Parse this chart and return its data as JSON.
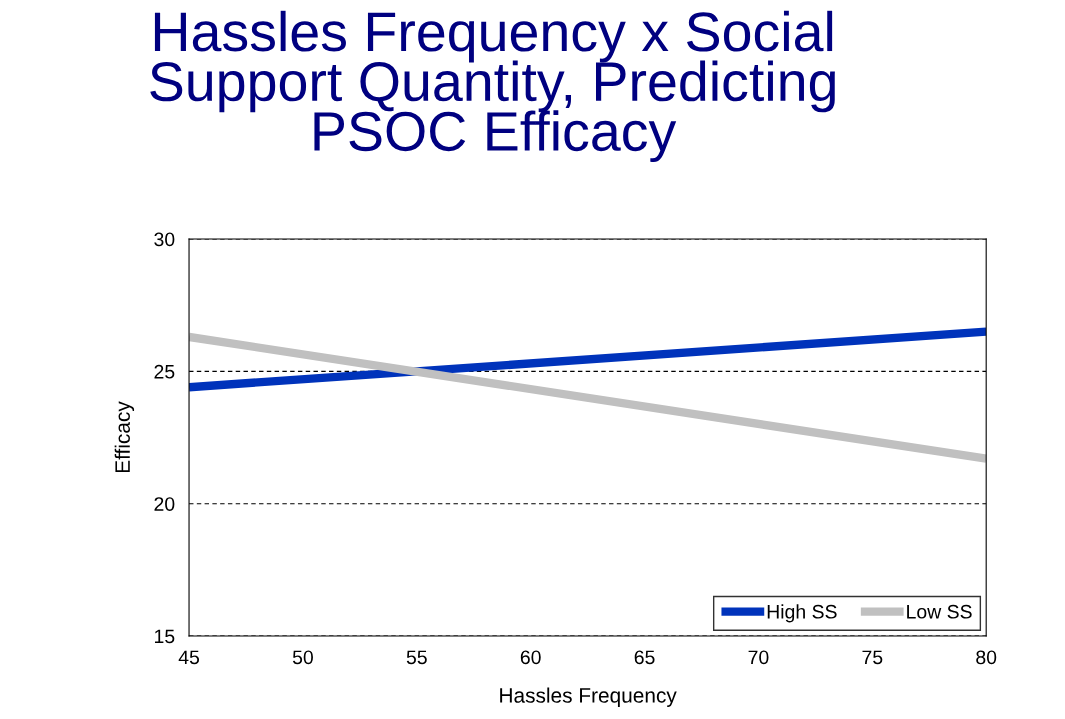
{
  "chart_data": {
    "type": "line",
    "title": "Hassles Frequency x Social\nSupport Quantity, Predicting\nPSOC Efficacy",
    "xlabel": "Hassles Frequency",
    "ylabel": "Efficacy",
    "x": [
      45,
      80
    ],
    "series": [
      {
        "name": "High SS",
        "color": "#0033bb",
        "values": [
          24.4,
          26.5
        ]
      },
      {
        "name": "Low SS",
        "color": "#c0c0c0",
        "values": [
          26.3,
          21.7
        ]
      }
    ],
    "xlim": [
      45,
      80
    ],
    "xticks": [
      45,
      50,
      55,
      60,
      65,
      70,
      75,
      80
    ],
    "ylim": [
      15,
      30
    ],
    "yticks": [
      15,
      20,
      25,
      30
    ],
    "grid": "y",
    "legend": "bottom right",
    "marker": "none",
    "line_style": "solid"
  }
}
